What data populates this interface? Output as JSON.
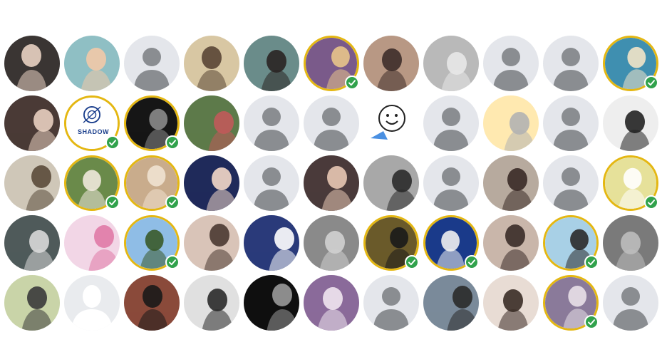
{
  "friends_grid": {
    "rows": [
      [
        {
          "kind": "photo",
          "bg": "#3a3533",
          "fg": "#e9d2c2",
          "verified": false
        },
        {
          "kind": "photo",
          "bg": "#8fbfc4",
          "fg": "#f2c9a8",
          "verified": false
        },
        {
          "kind": "placeholder",
          "verified": false
        },
        {
          "kind": "photo",
          "bg": "#d8c7a3",
          "fg": "#5a4535",
          "verified": false
        },
        {
          "kind": "photo",
          "bg": "#6a8c8a",
          "fg": "#2a2422",
          "verified": false
        },
        {
          "kind": "photo",
          "bg": "#7a5a8a",
          "fg": "#e8c48a",
          "verified": true
        },
        {
          "kind": "photo",
          "bg": "#b89884",
          "fg": "#3e2e2a",
          "verified": false
        },
        {
          "kind": "photo",
          "bg": "#b9b9b9",
          "fg": "#e8e8e8",
          "verified": false
        },
        {
          "kind": "placeholder",
          "verified": false
        },
        {
          "kind": "placeholder",
          "verified": false
        },
        {
          "kind": "photo",
          "bg": "#3f8fb0",
          "fg": "#f2e4c8",
          "verified": true
        }
      ],
      [
        {
          "kind": "photo",
          "bg": "#4a3a36",
          "fg": "#e8cfc0",
          "verified": false
        },
        {
          "kind": "logo",
          "bg": "#ffffff",
          "fg": "#1a3e8c",
          "text": "SHADOW",
          "verified": true
        },
        {
          "kind": "photo",
          "bg": "#161616",
          "fg": "#8a8a8a",
          "verified": true
        },
        {
          "kind": "photo",
          "bg": "#5d7a4a",
          "fg": "#c05a5a",
          "verified": false
        },
        {
          "kind": "placeholder",
          "verified": false
        },
        {
          "kind": "placeholder",
          "verified": false
        },
        {
          "kind": "sticker",
          "bg": "#ffffff",
          "fg": "#4a90e2",
          "verified": false
        },
        {
          "kind": "placeholder",
          "verified": false
        },
        {
          "kind": "photo",
          "bg": "#ffe9b0",
          "fg": "#b3b3b3",
          "verified": false
        },
        {
          "kind": "placeholder",
          "verified": false
        },
        {
          "kind": "photo",
          "bg": "#eeeeee",
          "fg": "#222222",
          "verified": false
        }
      ],
      [
        {
          "kind": "photo",
          "bg": "#cfc7b8",
          "fg": "#5a4a3a",
          "verified": false
        },
        {
          "kind": "photo",
          "bg": "#6a8a4a",
          "fg": "#efe8dc",
          "verified": true
        },
        {
          "kind": "photo",
          "bg": "#c9ac8c",
          "fg": "#f0e2d0",
          "verified": true
        },
        {
          "kind": "photo",
          "bg": "#1f2a5a",
          "fg": "#f3d8c8",
          "verified": false
        },
        {
          "kind": "placeholder",
          "verified": false
        },
        {
          "kind": "photo",
          "bg": "#4a3a3a",
          "fg": "#e8c8b4",
          "verified": false
        },
        {
          "kind": "photo",
          "bg": "#a8a8a8",
          "fg": "#2a2a2a",
          "verified": false
        },
        {
          "kind": "placeholder",
          "verified": false
        },
        {
          "kind": "photo",
          "bg": "#b7aa9e",
          "fg": "#3a2a26",
          "verified": false
        },
        {
          "kind": "placeholder",
          "verified": false
        },
        {
          "kind": "photo",
          "bg": "#e6e19a",
          "fg": "#ffffff",
          "verified": true
        }
      ],
      [
        {
          "kind": "photo",
          "bg": "#4f5a5a",
          "fg": "#d8d8d8",
          "verified": false
        },
        {
          "kind": "photo",
          "bg": "#f2d6e6",
          "fg": "#e07aa6",
          "verified": false
        },
        {
          "kind": "photo",
          "bg": "#8fbde6",
          "fg": "#3a5a2a",
          "verified": true
        },
        {
          "kind": "photo",
          "bg": "#d9c4b8",
          "fg": "#4a3a32",
          "verified": false
        },
        {
          "kind": "photo",
          "bg": "#2a3a7a",
          "fg": "#ffffff",
          "verified": false
        },
        {
          "kind": "photo",
          "bg": "#8a8a8a",
          "fg": "#d0d0d0",
          "verified": false
        },
        {
          "kind": "photo",
          "bg": "#6a5a2a",
          "fg": "#1a1a1a",
          "verified": true
        },
        {
          "kind": "photo",
          "bg": "#1a3a8a",
          "fg": "#f0f0f0",
          "verified": true
        },
        {
          "kind": "photo",
          "bg": "#c9b6aa",
          "fg": "#3a2c28",
          "verified": false
        },
        {
          "kind": "photo",
          "bg": "#a8d0e6",
          "fg": "#2a2a2a",
          "verified": true
        },
        {
          "kind": "photo",
          "bg": "#7a7a7a",
          "fg": "#bdbdbd",
          "verified": false
        }
      ],
      [
        {
          "kind": "photo",
          "bg": "#c9d4a8",
          "fg": "#3a3a3a",
          "verified": false
        },
        {
          "kind": "silhouette",
          "verified": false
        },
        {
          "kind": "photo",
          "bg": "#8a4a3a",
          "fg": "#1a1a1a",
          "verified": false
        },
        {
          "kind": "photo",
          "bg": "#e0e0e0",
          "fg": "#2a2a2a",
          "verified": false
        },
        {
          "kind": "photo",
          "bg": "#0f0f0f",
          "fg": "#9a9a9a",
          "verified": false
        },
        {
          "kind": "photo",
          "bg": "#8a6a9a",
          "fg": "#efe6ef",
          "verified": false
        },
        {
          "kind": "placeholder",
          "verified": false
        },
        {
          "kind": "photo",
          "bg": "#7a8a9a",
          "fg": "#2a2a2a",
          "verified": false
        },
        {
          "kind": "photo",
          "bg": "#e8dcd4",
          "fg": "#3a2c26",
          "verified": false
        },
        {
          "kind": "photo",
          "bg": "#8a7a9a",
          "fg": "#e8e0e8",
          "verified": true
        },
        {
          "kind": "placeholder",
          "verified": false
        }
      ]
    ]
  },
  "colors": {
    "placeholder_bg": "#e4e6eb",
    "placeholder_fg": "#8a8d91",
    "verified_ring": "#e4b712",
    "verified_badge": "#31a24c"
  }
}
